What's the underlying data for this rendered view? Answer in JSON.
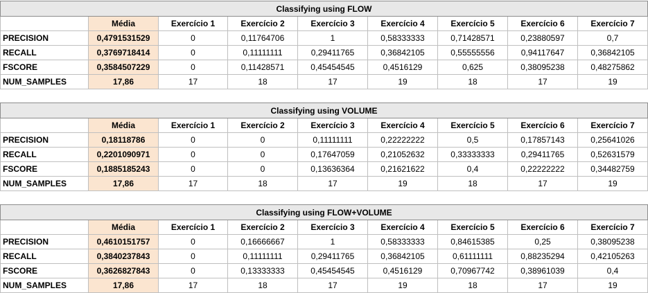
{
  "header": {
    "media": "Média",
    "exercises": [
      "Exercício 1",
      "Exercício 2",
      "Exercício 3",
      "Exercício 4",
      "Exercício 5",
      "Exercício 6",
      "Exercício 7"
    ]
  },
  "tables": [
    {
      "title": "Classifying using FLOW",
      "rows": [
        {
          "label": "PRECISION",
          "media": "0,4791531529",
          "values": [
            "0",
            "0,11764706",
            "1",
            "0,58333333",
            "0,71428571",
            "0,23880597",
            "0,7"
          ]
        },
        {
          "label": "RECALL",
          "media": "0,3769718414",
          "values": [
            "0",
            "0,11111111",
            "0,29411765",
            "0,36842105",
            "0,55555556",
            "0,94117647",
            "0,36842105"
          ]
        },
        {
          "label": "FSCORE",
          "media": "0,3584507229",
          "values": [
            "0",
            "0,11428571",
            "0,45454545",
            "0,4516129",
            "0,625",
            "0,38095238",
            "0,48275862"
          ]
        },
        {
          "label": "NUM_SAMPLES",
          "media": "17,86",
          "values": [
            "17",
            "18",
            "17",
            "19",
            "18",
            "17",
            "19"
          ]
        }
      ]
    },
    {
      "title": "Classifying using VOLUME",
      "rows": [
        {
          "label": "PRECISION",
          "media": "0,18118786",
          "values": [
            "0",
            "0",
            "0,11111111",
            "0,22222222",
            "0,5",
            "0,17857143",
            "0,25641026"
          ]
        },
        {
          "label": "RECALL",
          "media": "0,2201090971",
          "values": [
            "0",
            "0",
            "0,17647059",
            "0,21052632",
            "0,33333333",
            "0,29411765",
            "0,52631579"
          ]
        },
        {
          "label": "FSCORE",
          "media": "0,1885185243",
          "values": [
            "0",
            "0",
            "0,13636364",
            "0,21621622",
            "0,4",
            "0,22222222",
            "0,34482759"
          ]
        },
        {
          "label": "NUM_SAMPLES",
          "media": "17,86",
          "values": [
            "17",
            "18",
            "17",
            "19",
            "18",
            "17",
            "19"
          ]
        }
      ]
    },
    {
      "title": "Classifying using FLOW+VOLUME",
      "rows": [
        {
          "label": "PRECISION",
          "media": "0,4610151757",
          "values": [
            "0",
            "0,16666667",
            "1",
            "0,58333333",
            "0,84615385",
            "0,25",
            "0,38095238"
          ]
        },
        {
          "label": "RECALL",
          "media": "0,3840237843",
          "values": [
            "0",
            "0,11111111",
            "0,29411765",
            "0,36842105",
            "0,61111111",
            "0,88235294",
            "0,42105263"
          ]
        },
        {
          "label": "FSCORE",
          "media": "0,3626827843",
          "values": [
            "0",
            "0,13333333",
            "0,45454545",
            "0,4516129",
            "0,70967742",
            "0,38961039",
            "0,4"
          ]
        },
        {
          "label": "NUM_SAMPLES",
          "media": "17,86",
          "values": [
            "17",
            "18",
            "17",
            "19",
            "18",
            "17",
            "19"
          ]
        }
      ]
    }
  ]
}
